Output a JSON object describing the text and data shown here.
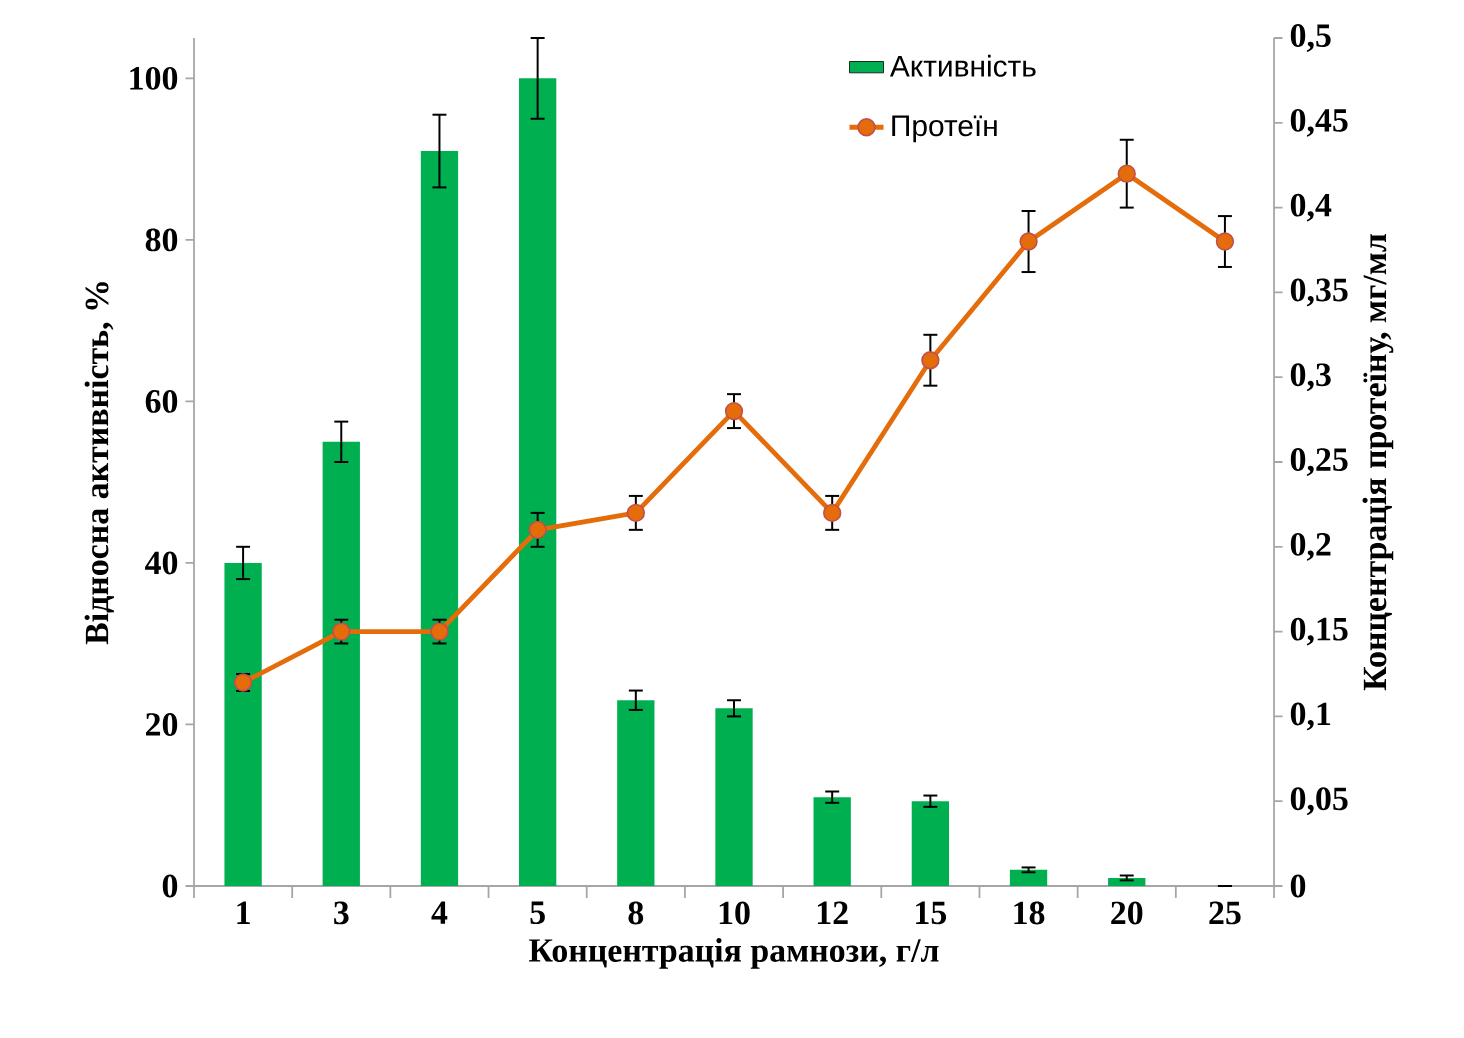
{
  "chart_data": {
    "type": "bar",
    "xlabel": "Концентрація  рамнози, г/л",
    "ylabel": "Відносна активність, %",
    "y2label": "Концентрація  протеїну, мг/мл",
    "categories": [
      "1",
      "3",
      "4",
      "5",
      "8",
      "10",
      "12",
      "15",
      "18",
      "20",
      "25"
    ],
    "series": [
      {
        "name": "Активність",
        "color": "#00b050",
        "values": [
          40,
          55,
          91,
          100,
          23,
          22,
          11,
          10.5,
          2,
          1,
          0
        ],
        "errors": [
          2,
          2.5,
          4.5,
          5,
          1.2,
          1,
          0.7,
          0.7,
          0.3,
          0.3,
          null
        ]
      },
      {
        "name": "Протеїн",
        "type": "line",
        "axis": "y2",
        "color": "#e46c0a",
        "marker": "circle",
        "values": [
          0.12,
          0.15,
          0.15,
          0.21,
          0.22,
          0.28,
          0.22,
          0.31,
          0.38,
          0.42,
          0.38
        ],
        "errors": [
          0.005,
          0.007,
          0.007,
          0.01,
          0.01,
          0.01,
          0.01,
          0.015,
          0.018,
          0.02,
          0.015
        ]
      }
    ],
    "ylim": [
      0,
      105
    ],
    "yticks": [
      0,
      20,
      40,
      60,
      80,
      100
    ],
    "y2lim": [
      0,
      0.5
    ],
    "y2ticks": [
      0,
      {
        "value": 0.05,
        "label": "0,05"
      },
      {
        "value": 0.1,
        "label": "0,1"
      },
      {
        "value": 0.15,
        "label": "0,15"
      },
      {
        "value": 0.2,
        "label": "0,2"
      },
      {
        "value": 0.25,
        "label": "0,25"
      },
      {
        "value": 0.3,
        "label": "0,3"
      },
      {
        "value": 0.35,
        "label": "0,35"
      },
      {
        "value": 0.4,
        "label": "0,4"
      },
      {
        "value": 0.45,
        "label": "0,45"
      },
      {
        "value": 0.5,
        "label": "0,5"
      }
    ],
    "legend": "top right"
  }
}
